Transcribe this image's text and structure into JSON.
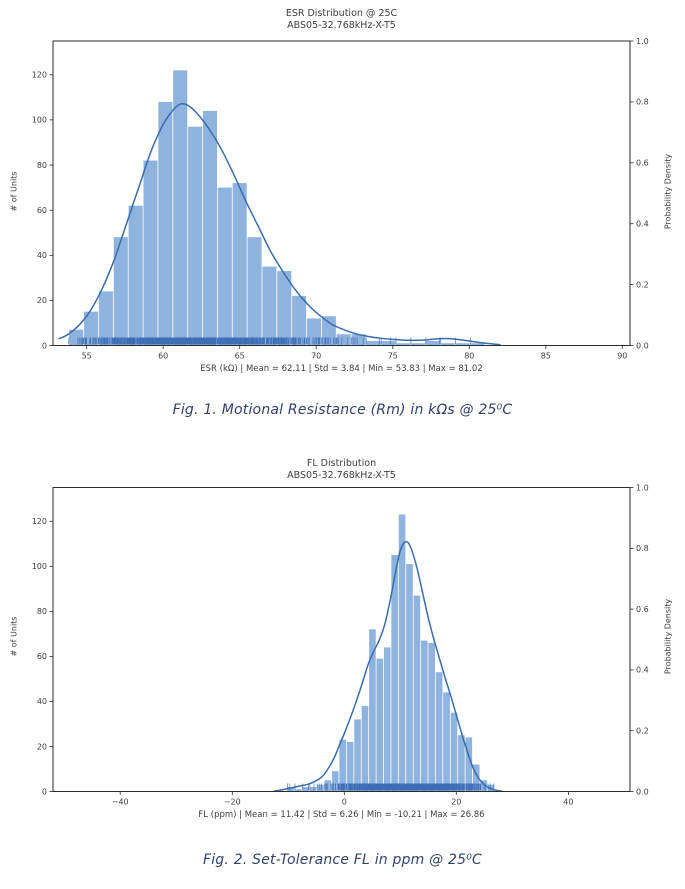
{
  "colors": {
    "bar_fill": "#8db3de",
    "bar_edge": "#ffffff",
    "kde_line": "#3a6cad",
    "rug": "#3e6eb5",
    "axis_text": "#3d3d3d",
    "spine": "#2b2b2b",
    "caption_text": "#31426b",
    "background": "#ffffff"
  },
  "figures": [
    {
      "caption": "Fig. 1.  Motional Resistance (Rm) in kΩs @ 25⁰C"
    },
    {
      "caption": "Fig. 2.  Set-Tolerance FL in ppm @ 25⁰C"
    }
  ],
  "chart_data": [
    {
      "type": "bar",
      "subtype": "histogram-with-kde-and-rug",
      "title_line1": "ESR Distribution @ 25C",
      "title_line2": "ABS05-32.768kHz-X-T5",
      "xlabel": "ESR (kΩ)  |  Mean = 62.11  |  Std = 3.84  |  Min = 53.83  |  Max = 81.02",
      "ylabel_left": "# of Units",
      "ylabel_right": "Probability Density",
      "stats": {
        "mean": 62.11,
        "std": 3.84,
        "min": 53.83,
        "max": 81.02
      },
      "bin_start": 53.83,
      "bin_width": 0.9711,
      "counts": [
        7,
        15,
        24,
        48,
        62,
        82,
        108,
        122,
        97,
        104,
        70,
        72,
        48,
        35,
        33,
        22,
        12,
        13,
        5,
        5,
        2,
        2,
        1,
        1,
        2,
        1,
        1,
        1
      ],
      "xlim": [
        52.8,
        90.5
      ],
      "xticks": [
        55,
        60,
        65,
        70,
        75,
        80,
        85,
        90
      ],
      "xtick_labels": [
        "55",
        "60",
        "65",
        "70",
        "75",
        "80",
        "85",
        "90"
      ],
      "ylim_left": [
        0,
        135
      ],
      "yticks_left": [
        0,
        20,
        40,
        60,
        80,
        100,
        120
      ],
      "ylim_right": [
        0,
        1.0
      ],
      "yticks_right": [
        "0.0",
        "0.2",
        "0.4",
        "0.6",
        "0.8",
        "1.0"
      ],
      "grid": false,
      "kde": [
        [
          53.2,
          3
        ],
        [
          53.8,
          5
        ],
        [
          54.5,
          9
        ],
        [
          55.2,
          15
        ],
        [
          56,
          25
        ],
        [
          56.8,
          38
        ],
        [
          57.6,
          54
        ],
        [
          58.4,
          70
        ],
        [
          59.2,
          86
        ],
        [
          60,
          98
        ],
        [
          60.6,
          104
        ],
        [
          61.1,
          107
        ],
        [
          61.6,
          106.5
        ],
        [
          62.2,
          103
        ],
        [
          63,
          96
        ],
        [
          63.8,
          87
        ],
        [
          64.6,
          76
        ],
        [
          65.4,
          64
        ],
        [
          66.2,
          53
        ],
        [
          67,
          42
        ],
        [
          67.8,
          33
        ],
        [
          68.6,
          25
        ],
        [
          69.4,
          18.5
        ],
        [
          70.2,
          13.5
        ],
        [
          71,
          9.5
        ],
        [
          71.8,
          7
        ],
        [
          72.6,
          5.2
        ],
        [
          73.4,
          4
        ],
        [
          74.2,
          3.2
        ],
        [
          75,
          2.7
        ],
        [
          76,
          2.3
        ],
        [
          77,
          2.4
        ],
        [
          78,
          3
        ],
        [
          78.8,
          3
        ],
        [
          79.6,
          2.4
        ],
        [
          80.4,
          1.6
        ],
        [
          81.2,
          0.9
        ],
        [
          82,
          0.4
        ]
      ],
      "rug_range": [
        53.83,
        81.02
      ]
    },
    {
      "type": "bar",
      "subtype": "histogram-with-kde-and-rug",
      "title_line1": "FL Distribution",
      "title_line2": "ABS05-32.768kHz-X-T5",
      "xlabel": "FL (ppm)  |  Mean = 11.42  |  Std = 6.26  |  Min = -10.21  |  Max = 26.86",
      "ylabel_left": "# of Units",
      "ylabel_right": "Probability Density",
      "stats": {
        "mean": 11.42,
        "std": 6.26,
        "min": -10.21,
        "max": 26.86
      },
      "bin_start": -10.21,
      "bin_width": 1.3239,
      "counts": [
        2,
        1,
        2,
        2,
        3,
        5,
        9,
        23,
        22,
        32,
        38,
        72,
        59,
        64,
        105,
        123,
        101,
        87,
        67,
        66,
        53,
        44,
        35,
        25,
        24,
        12,
        5,
        3
      ],
      "xlim": [
        -52,
        51
      ],
      "xticks": [
        -40,
        -20,
        0,
        20,
        40
      ],
      "xtick_labels": [
        "−40",
        "−20",
        "0",
        "20",
        "40"
      ],
      "ylim_left": [
        0,
        135
      ],
      "yticks_left": [
        0,
        20,
        40,
        60,
        80,
        100,
        120
      ],
      "ylim_right": [
        0,
        1.0
      ],
      "yticks_right": [
        "0.0",
        "0.2",
        "0.4",
        "0.6",
        "0.8",
        "1.0"
      ],
      "grid": false,
      "kde": [
        [
          -12.5,
          0.2
        ],
        [
          -11,
          0.8
        ],
        [
          -9.5,
          1.6
        ],
        [
          -8,
          2.4
        ],
        [
          -6.5,
          3.2
        ],
        [
          -5,
          4.8
        ],
        [
          -3.8,
          7
        ],
        [
          -2.8,
          10.5
        ],
        [
          -1.8,
          15
        ],
        [
          -0.8,
          21
        ],
        [
          0.2,
          27
        ],
        [
          1.2,
          33.5
        ],
        [
          2.2,
          40.5
        ],
        [
          3.2,
          48
        ],
        [
          4.2,
          56
        ],
        [
          5.2,
          62
        ],
        [
          6.2,
          67
        ],
        [
          7.2,
          74
        ],
        [
          8.2,
          85
        ],
        [
          9.2,
          98
        ],
        [
          10,
          107
        ],
        [
          10.7,
          110.5
        ],
        [
          11.4,
          110.5
        ],
        [
          12.2,
          106
        ],
        [
          13,
          99
        ],
        [
          14,
          88
        ],
        [
          15,
          77
        ],
        [
          16,
          67.5
        ],
        [
          17,
          59
        ],
        [
          18,
          50.5
        ],
        [
          19,
          42.5
        ],
        [
          20,
          34
        ],
        [
          21,
          25.5
        ],
        [
          22,
          17.5
        ],
        [
          23,
          10.5
        ],
        [
          24,
          5.8
        ],
        [
          25,
          3
        ],
        [
          26,
          1.4
        ],
        [
          27,
          0.6
        ],
        [
          28,
          0.2
        ]
      ],
      "rug_range": [
        -10.21,
        26.86
      ]
    }
  ]
}
